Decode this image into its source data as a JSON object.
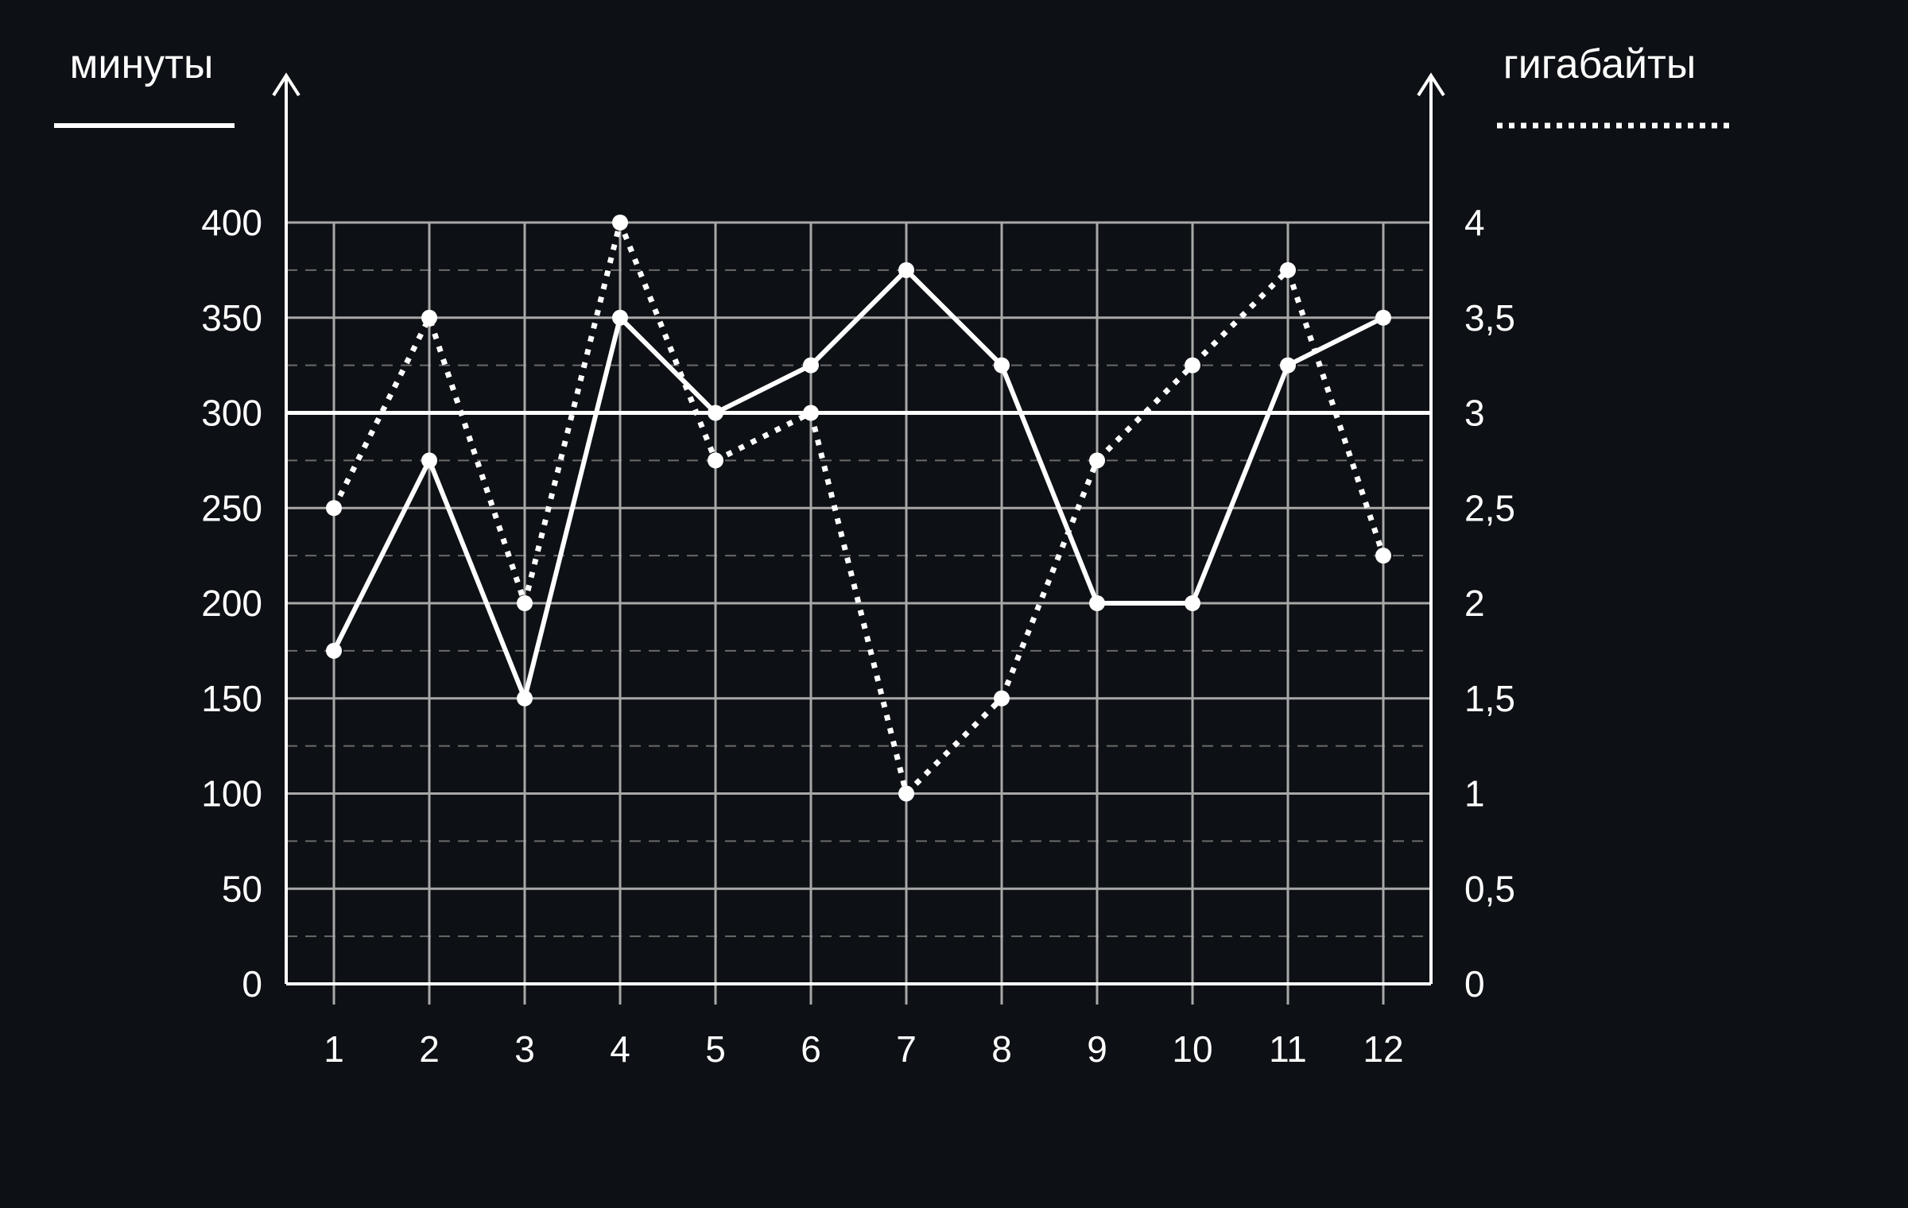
{
  "chart_data": {
    "type": "line",
    "categories": [
      "1",
      "2",
      "3",
      "4",
      "5",
      "6",
      "7",
      "8",
      "9",
      "10",
      "11",
      "12"
    ],
    "y_left": {
      "label": "минуты",
      "range": [
        0,
        400
      ],
      "ticks": [
        "0",
        "50",
        "100",
        "150",
        "200",
        "250",
        "300",
        "350",
        "400"
      ]
    },
    "y_right": {
      "label": "гигабайты",
      "range": [
        0,
        4
      ],
      "ticks": [
        "0",
        "0,5",
        "1",
        "1,5",
        "2",
        "2,5",
        "3",
        "3,5",
        "4"
      ]
    },
    "series": [
      {
        "name": "минуты",
        "axis": "left",
        "style": "solid",
        "values": [
          175,
          275,
          150,
          350,
          300,
          325,
          375,
          325,
          200,
          200,
          325,
          350
        ]
      },
      {
        "name": "гигабайты",
        "axis": "right",
        "style": "dotted",
        "values": [
          2.5,
          3.5,
          2,
          4,
          2.75,
          3,
          1,
          1.5,
          2.75,
          3.25,
          3.75,
          2.25
        ]
      }
    ],
    "reference_line": {
      "axis": "left",
      "value": 300
    },
    "grid": true,
    "colors": {
      "background": "#0d1014",
      "foreground": "#ffffff",
      "grid": "#a8a8a8",
      "minor_grid": "#6a6a6a"
    }
  }
}
